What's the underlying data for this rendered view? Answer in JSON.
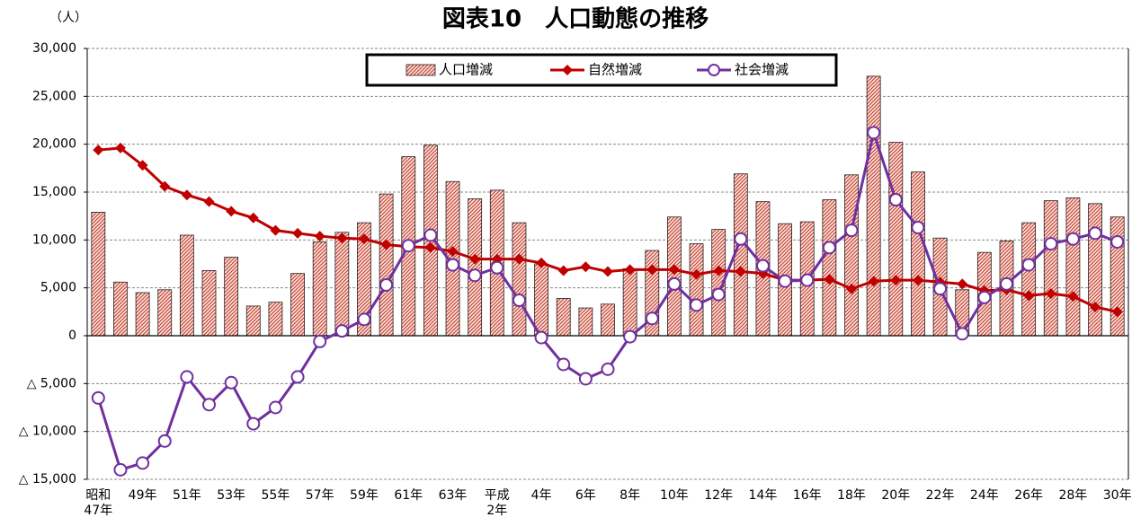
{
  "chart_data": {
    "type": "bar",
    "title": "図表10　人口動態の推移",
    "y_unit": "（人）",
    "categories": [
      "昭和\n47年",
      null,
      "49年",
      null,
      "51年",
      null,
      "53年",
      null,
      "55年",
      null,
      "57年",
      null,
      "59年",
      null,
      "61年",
      null,
      "63年",
      null,
      "平成\n2年",
      null,
      "4年",
      null,
      "6年",
      null,
      "8年",
      null,
      "10年",
      null,
      "12年",
      null,
      "14年",
      null,
      "16年",
      null,
      "18年",
      null,
      "20年",
      null,
      "22年",
      null,
      "24年",
      null,
      "26年",
      null,
      "28年",
      null,
      "30年"
    ],
    "series": [
      {
        "name": "人口増減",
        "type": "bar",
        "color": "#c0392b",
        "values": [
          12900,
          5600,
          4500,
          4800,
          10500,
          6800,
          8200,
          3100,
          3500,
          6500,
          9800,
          10800,
          11800,
          14800,
          18700,
          19900,
          16100,
          14300,
          15200,
          11800,
          7500,
          3900,
          2900,
          3300,
          7000,
          8900,
          12400,
          9600,
          11100,
          16900,
          14000,
          11700,
          11900,
          14200,
          16800,
          27100,
          20200,
          17100,
          10200,
          4800,
          8700,
          9900,
          11800,
          14100,
          14400,
          13800,
          12400
        ]
      },
      {
        "name": "自然増減",
        "type": "line",
        "marker": "diamond",
        "color": "#c00000",
        "values": [
          19400,
          19600,
          17800,
          15600,
          14700,
          14000,
          13000,
          12300,
          11000,
          10700,
          10400,
          10200,
          10100,
          9500,
          9300,
          9200,
          8800,
          8000,
          8000,
          8000,
          7600,
          6800,
          7200,
          6700,
          6900,
          6900,
          6900,
          6400,
          6800,
          6700,
          6500,
          5800,
          5800,
          5900,
          4900,
          5700,
          5800,
          5800,
          5600,
          5400,
          4700,
          4800,
          4200,
          4400,
          4100,
          3000,
          2500
        ]
      },
      {
        "name": "社会増減",
        "type": "line",
        "marker": "circle",
        "color": "#7030a0",
        "values": [
          -6500,
          -14000,
          -13300,
          -11000,
          -4300,
          -7200,
          -4900,
          -9200,
          -7500,
          -4300,
          -600,
          500,
          1700,
          5300,
          9400,
          10500,
          7400,
          6300,
          7100,
          3700,
          -200,
          -3000,
          -4500,
          -3500,
          -100,
          1800,
          5400,
          3200,
          4300,
          10100,
          7300,
          5700,
          5800,
          9200,
          11000,
          21200,
          14200,
          11300,
          4900,
          200,
          4000,
          5400,
          7400,
          9600,
          10100,
          10700,
          9800
        ]
      }
    ],
    "ylim": [
      -15000,
      30000
    ],
    "yticks": [
      {
        "value": -15000,
        "label": "△ 15,000"
      },
      {
        "value": -10000,
        "label": "△ 10,000"
      },
      {
        "value": -5000,
        "label": "△ 5,000"
      },
      0,
      {
        "value": 5000,
        "label": "5,000"
      },
      {
        "value": 10000,
        "label": "10,000"
      },
      {
        "value": 15000,
        "label": "15,000"
      },
      {
        "value": 20000,
        "label": "20,000"
      },
      {
        "value": 25000,
        "label": "25,000"
      },
      {
        "value": 30000,
        "label": "30,000"
      }
    ],
    "grid": true,
    "legend": "top"
  }
}
